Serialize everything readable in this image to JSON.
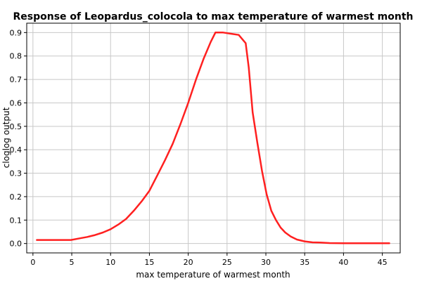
{
  "chart_data": {
    "type": "line",
    "title": "Response of Leopardus_colocola to max temperature of warmest month",
    "xlabel": "max temperature of warmest month",
    "ylabel": "cloglog output",
    "xlim": [
      -0.8,
      47.3
    ],
    "ylim": [
      -0.04,
      0.94
    ],
    "xticks": [
      0,
      5,
      10,
      15,
      20,
      25,
      30,
      35,
      40,
      45
    ],
    "yticks": [
      0.0,
      0.1,
      0.2,
      0.3,
      0.4,
      0.5,
      0.6,
      0.7,
      0.8,
      0.9
    ],
    "ytick_labels": [
      "0.0",
      "0.1",
      "0.2",
      "0.3",
      "0.4",
      "0.5",
      "0.6",
      "0.7",
      "0.8",
      "0.9"
    ],
    "grid": true,
    "series": [
      {
        "color": "#ff2020",
        "x": [
          0.5,
          2,
          4.9,
          6,
          7,
          8,
          9,
          10,
          11,
          12,
          13,
          14,
          15,
          16,
          17,
          18,
          19,
          20,
          21,
          22,
          22.9,
          23.5,
          24.5,
          25.5,
          26.5,
          27.4,
          27.8,
          28.3,
          28.9,
          29.5,
          30.1,
          30.7,
          31.3,
          31.9,
          32.5,
          33.2,
          34,
          35,
          36,
          37,
          38.2,
          40,
          42,
          44,
          45.9
        ],
        "y": [
          0.015,
          0.015,
          0.015,
          0.022,
          0.028,
          0.036,
          0.047,
          0.061,
          0.081,
          0.105,
          0.14,
          0.18,
          0.225,
          0.29,
          0.355,
          0.425,
          0.51,
          0.6,
          0.7,
          0.79,
          0.86,
          0.9,
          0.9,
          0.895,
          0.89,
          0.855,
          0.75,
          0.56,
          0.43,
          0.31,
          0.21,
          0.14,
          0.1,
          0.068,
          0.047,
          0.03,
          0.017,
          0.009,
          0.005,
          0.004,
          0.002,
          0.001,
          0.001,
          0.001,
          0.001
        ]
      }
    ]
  }
}
